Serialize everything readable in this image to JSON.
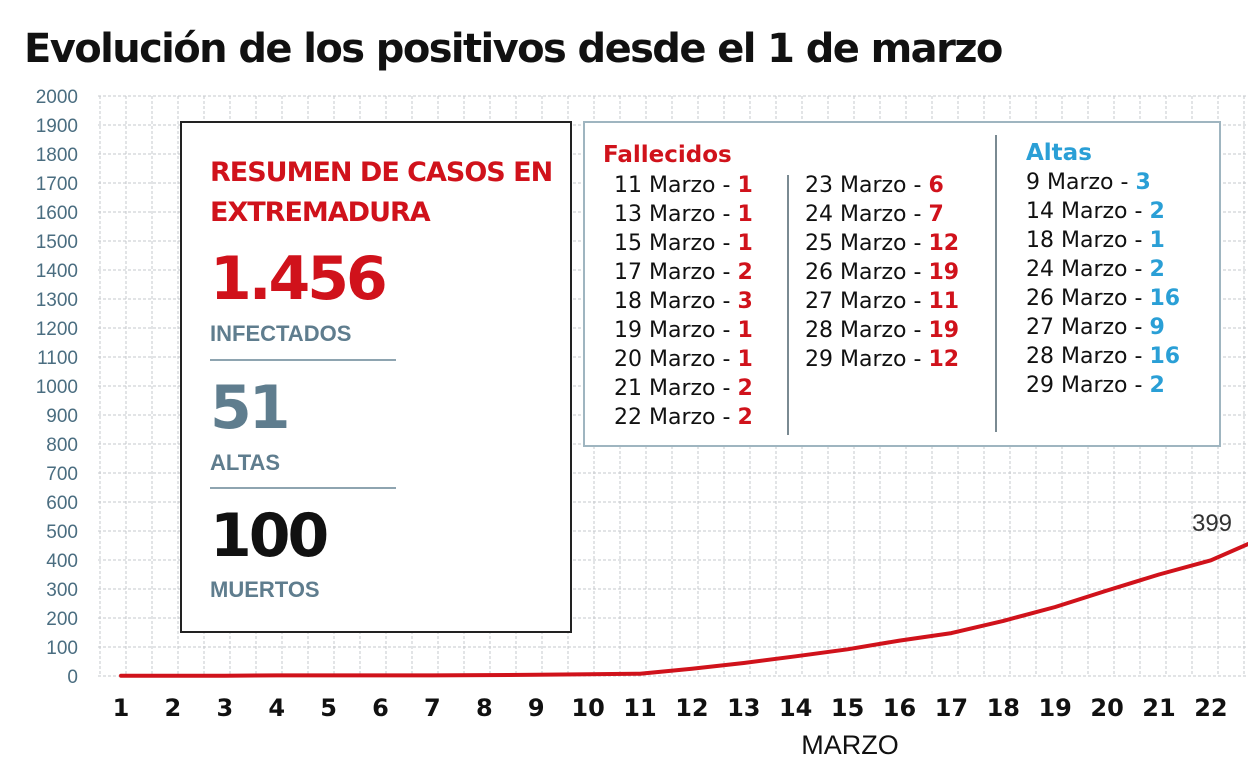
{
  "colors": {
    "accent_red": "#d0121b",
    "accent_blue": "#2a9fd6",
    "muted": "#5f7d8e",
    "axis_text": "#4a6d80"
  },
  "chart_data": {
    "type": "line",
    "title": "Evolución de los positivos desde el 1 de marzo",
    "xlabel": "MARZO",
    "ylabel": "",
    "grid": true,
    "ylim": [
      0,
      2000
    ],
    "yticks": [
      0,
      100,
      200,
      300,
      400,
      500,
      600,
      700,
      800,
      900,
      1000,
      1100,
      1200,
      1300,
      1400,
      1500,
      1600,
      1700,
      1800,
      1900,
      2000
    ],
    "x": [
      1,
      2,
      3,
      4,
      5,
      6,
      7,
      8,
      9,
      10,
      11,
      12,
      13,
      14,
      15,
      16,
      17,
      18,
      19,
      20,
      21,
      22
    ],
    "series": [
      {
        "name": "",
        "color": "#d0121b",
        "values": [
          1,
          1,
          1,
          2,
          2,
          2,
          2,
          3,
          4,
          6,
          8,
          25,
          45,
          68,
          92,
          122,
          148,
          190,
          238,
          295,
          350,
          399
        ]
      }
    ],
    "annotations": [
      {
        "x": 22,
        "y": 399,
        "text": "399"
      }
    ]
  },
  "summary": {
    "heading": "RESUMEN DE CASOS EN EXTREMADURA",
    "infected_value": "1.456",
    "infected_label": "INFECTADOS",
    "altas_value": "51",
    "altas_label": "ALTAS",
    "deaths_value": "100",
    "deaths_label": "MUERTOS"
  },
  "fallecidos": {
    "heading": "Fallecidos",
    "entries": [
      {
        "date": "11 Marzo",
        "value": "1"
      },
      {
        "date": "13 Marzo",
        "value": "1"
      },
      {
        "date": "15 Marzo",
        "value": "1"
      },
      {
        "date": "17 Marzo",
        "value": "2"
      },
      {
        "date": "18 Marzo",
        "value": "3"
      },
      {
        "date": "19 Marzo",
        "value": "1"
      },
      {
        "date": "20 Marzo",
        "value": "1"
      },
      {
        "date": "21 Marzo",
        "value": "2"
      },
      {
        "date": "22 Marzo",
        "value": "2"
      },
      {
        "date": "23 Marzo",
        "value": "6"
      },
      {
        "date": "24 Marzo",
        "value": "7"
      },
      {
        "date": "25 Marzo",
        "value": "12"
      },
      {
        "date": "26 Marzo",
        "value": "19"
      },
      {
        "date": "27 Marzo",
        "value": "11"
      },
      {
        "date": "28 Marzo",
        "value": "19"
      },
      {
        "date": "29 Marzo",
        "value": "12"
      }
    ]
  },
  "altas": {
    "heading": "Altas",
    "entries": [
      {
        "date": "9 Marzo",
        "value": "3"
      },
      {
        "date": "14 Marzo",
        "value": "2"
      },
      {
        "date": "18 Marzo",
        "value": "1"
      },
      {
        "date": "24 Marzo",
        "value": "2"
      },
      {
        "date": "26 Marzo",
        "value": "16"
      },
      {
        "date": "27 Marzo",
        "value": "9"
      },
      {
        "date": "28 Marzo",
        "value": "16"
      },
      {
        "date": "29 Marzo",
        "value": "2"
      }
    ]
  }
}
